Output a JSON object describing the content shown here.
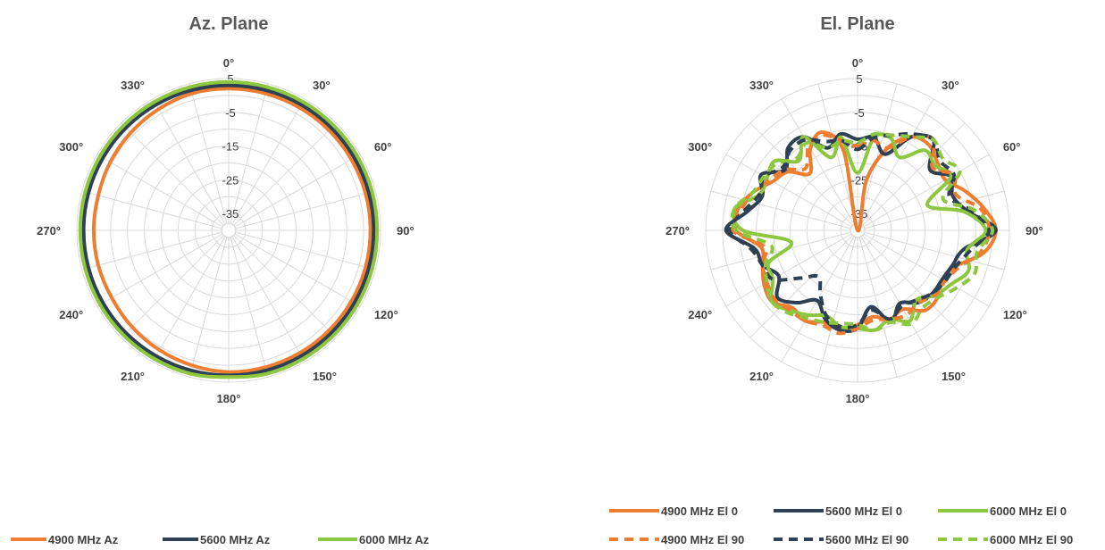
{
  "chart_data": [
    {
      "type": "polar",
      "title": "Az. Plane",
      "angle_labels": [
        "0°",
        "30°",
        "60°",
        "90°",
        "120°",
        "150°",
        "180°",
        "210°",
        "240°",
        "270°",
        "300°",
        "330°"
      ],
      "r_ticks": [
        "5",
        "-5",
        "-15",
        "-25",
        "-35"
      ],
      "r_tick_values": [
        5,
        -5,
        -15,
        -25,
        -35
      ],
      "rlim": [
        -40,
        5
      ],
      "theta_labels_deg": [
        0,
        30,
        60,
        90,
        120,
        150,
        180,
        210,
        240,
        270,
        300,
        330
      ],
      "grid": true,
      "legend_position": "bottom",
      "series": [
        {
          "name": "4900 MHz Az",
          "color": "#ED7D31",
          "dash": false,
          "theta": [
            0,
            15,
            30,
            45,
            60,
            75,
            90,
            105,
            120,
            135,
            150,
            165,
            180,
            195,
            210,
            225,
            240,
            255,
            270,
            285,
            300,
            315,
            330,
            345
          ],
          "r": [
            2,
            2,
            2,
            2,
            2,
            2,
            2,
            2,
            2,
            2,
            2,
            2,
            2,
            1.5,
            1,
            0.5,
            0,
            0,
            0,
            0,
            0.5,
            1,
            1.5,
            2
          ]
        },
        {
          "name": "5600 MHz Az",
          "color": "#2E4053",
          "dash": false,
          "theta": [
            0,
            15,
            30,
            45,
            60,
            75,
            90,
            105,
            120,
            135,
            150,
            165,
            180,
            195,
            210,
            225,
            240,
            255,
            270,
            285,
            300,
            315,
            330,
            345
          ],
          "r": [
            3,
            3,
            3,
            3,
            3,
            3,
            3,
            3,
            3,
            3,
            3,
            3,
            3,
            3,
            3,
            3,
            3,
            3,
            3,
            3,
            3,
            3,
            3,
            3
          ]
        },
        {
          "name": "6000 MHz Az",
          "color": "#8DC63F",
          "dash": false,
          "theta": [
            0,
            15,
            30,
            45,
            60,
            75,
            90,
            105,
            120,
            135,
            150,
            165,
            180,
            195,
            210,
            225,
            240,
            255,
            270,
            285,
            300,
            315,
            330,
            345
          ],
          "r": [
            4,
            4,
            4,
            4,
            4,
            4,
            4,
            4,
            4,
            4,
            4,
            4,
            3.5,
            4,
            4,
            4,
            4,
            4,
            4,
            4,
            4,
            4,
            4,
            4
          ]
        }
      ]
    },
    {
      "type": "polar",
      "title": "El. Plane",
      "angle_labels": [
        "0°",
        "30°",
        "60°",
        "90°",
        "120°",
        "150°",
        "180°",
        "210°",
        "240°",
        "270°",
        "300°",
        "330°"
      ],
      "r_ticks": [
        "5",
        "-5",
        "-15",
        "-25",
        "-35"
      ],
      "r_tick_values": [
        5,
        -5,
        -15,
        -25,
        -35
      ],
      "rlim": [
        -40,
        5
      ],
      "theta_labels_deg": [
        0,
        30,
        60,
        90,
        120,
        150,
        180,
        210,
        240,
        270,
        300,
        330
      ],
      "grid": true,
      "legend_position": "bottom",
      "series": [
        {
          "name": "4900 MHz El 0",
          "color": "#ED7D31",
          "dash": false,
          "theta": [
            0,
            10,
            20,
            30,
            40,
            50,
            60,
            70,
            80,
            90,
            100,
            110,
            120,
            130,
            140,
            150,
            160,
            170,
            180,
            190,
            200,
            210,
            220,
            230,
            240,
            250,
            260,
            270,
            280,
            290,
            300,
            310,
            320,
            330,
            340,
            350
          ],
          "r": [
            -40,
            -25,
            -14,
            -8,
            -7,
            -9,
            -10,
            -6,
            -2,
            1,
            -2,
            -9,
            -11,
            -9,
            -9,
            -13,
            -12,
            -14,
            -12,
            -10,
            -11,
            -9,
            -10,
            -7,
            -8,
            -10,
            -11,
            -4,
            -4,
            -7,
            -11,
            -13,
            -18,
            -12,
            -9,
            -16
          ]
        },
        {
          "name": "5600 MHz El 0",
          "color": "#2E4053",
          "dash": false,
          "theta": [
            0,
            10,
            20,
            30,
            40,
            50,
            60,
            70,
            80,
            90,
            100,
            110,
            120,
            130,
            140,
            150,
            160,
            170,
            180,
            190,
            200,
            210,
            220,
            230,
            240,
            250,
            260,
            270,
            280,
            290,
            300,
            310,
            320,
            330,
            340,
            350
          ],
          "r": [
            -13,
            -12,
            -16,
            -8,
            -5,
            -12,
            -8,
            -10,
            -7,
            1,
            -8,
            -10,
            -11,
            -11,
            -12,
            -15,
            -11,
            -17,
            -11,
            -10,
            -12,
            -16,
            -12,
            -9,
            -13,
            -10,
            -9,
            -1,
            -7,
            -10,
            -7,
            -12,
            -8,
            -8,
            -14,
            -11
          ]
        },
        {
          "name": "6000 MHz El 0",
          "color": "#8DC63F",
          "dash": false,
          "theta": [
            0,
            10,
            20,
            30,
            40,
            50,
            60,
            70,
            80,
            90,
            100,
            110,
            120,
            130,
            140,
            150,
            160,
            170,
            180,
            190,
            200,
            210,
            220,
            230,
            240,
            250,
            260,
            270,
            280,
            290,
            300,
            310,
            320,
            330,
            340,
            350
          ],
          "r": [
            -23,
            -12,
            -11,
            -15,
            -9,
            -10,
            -8,
            -18,
            -8,
            -2,
            -7,
            -5,
            -8,
            -10,
            -13,
            -9,
            -12,
            -10,
            -11,
            -11,
            -13,
            -11,
            -9,
            -7,
            -11,
            -12,
            -20,
            -6,
            -3,
            -9,
            -9,
            -8,
            -13,
            -8,
            -17,
            -12
          ]
        },
        {
          "name": "4900 MHz El 90",
          "color": "#ED7D31",
          "dash": true,
          "theta": [
            0,
            10,
            20,
            30,
            40,
            50,
            60,
            70,
            80,
            90,
            100,
            110,
            120,
            130,
            140,
            150,
            160,
            170,
            180,
            190,
            200,
            210,
            220,
            230,
            240,
            250,
            260,
            270,
            280,
            290,
            300,
            310,
            320,
            330,
            340,
            350
          ],
          "r": [
            -15,
            -13,
            -14,
            -8,
            -5,
            -11,
            -7,
            -9,
            -3,
            -1,
            -3,
            -8,
            -10,
            -10,
            -12,
            -11,
            -12,
            -13,
            -11,
            -9,
            -10,
            -9,
            -9,
            -8,
            -9,
            -10,
            -12,
            -3,
            -5,
            -7,
            -10,
            -12,
            -16,
            -11,
            -10,
            -13
          ]
        },
        {
          "name": "5600 MHz El 90",
          "color": "#2E4053",
          "dash": true,
          "theta": [
            0,
            10,
            20,
            30,
            40,
            50,
            60,
            70,
            80,
            90,
            100,
            110,
            120,
            130,
            140,
            150,
            160,
            170,
            180,
            190,
            200,
            210,
            220,
            230,
            240,
            250,
            260,
            270,
            280,
            290,
            300,
            310,
            320,
            330,
            340,
            350
          ],
          "r": [
            -16,
            -12,
            -10,
            -7,
            -5,
            -8,
            -7,
            -11,
            -6,
            -1,
            -6,
            -9,
            -10,
            -11,
            -13,
            -14,
            -12,
            -16,
            -12,
            -11,
            -13,
            -18,
            -22,
            -18,
            -11,
            -10,
            -8,
            -2,
            -6,
            -9,
            -8,
            -11,
            -9,
            -9,
            -12,
            -13
          ]
        },
        {
          "name": "6000 MHz El 90",
          "color": "#8DC63F",
          "dash": true,
          "theta": [
            0,
            10,
            20,
            30,
            40,
            50,
            60,
            70,
            80,
            90,
            100,
            110,
            120,
            130,
            140,
            150,
            160,
            170,
            180,
            190,
            200,
            210,
            220,
            230,
            240,
            250,
            260,
            270,
            280,
            290,
            300,
            310,
            320,
            330,
            340,
            350
          ],
          "r": [
            -14,
            -11,
            -10,
            -8,
            -5,
            -7,
            -5,
            -13,
            -5,
            0,
            -4,
            -3,
            -6,
            -9,
            -10,
            -8,
            -11,
            -10,
            -12,
            -12,
            -11,
            -10,
            -8,
            -7,
            -9,
            -11,
            -14,
            -4,
            -3,
            -7,
            -8,
            -9,
            -12,
            -10,
            -14,
            -13
          ]
        }
      ]
    }
  ]
}
